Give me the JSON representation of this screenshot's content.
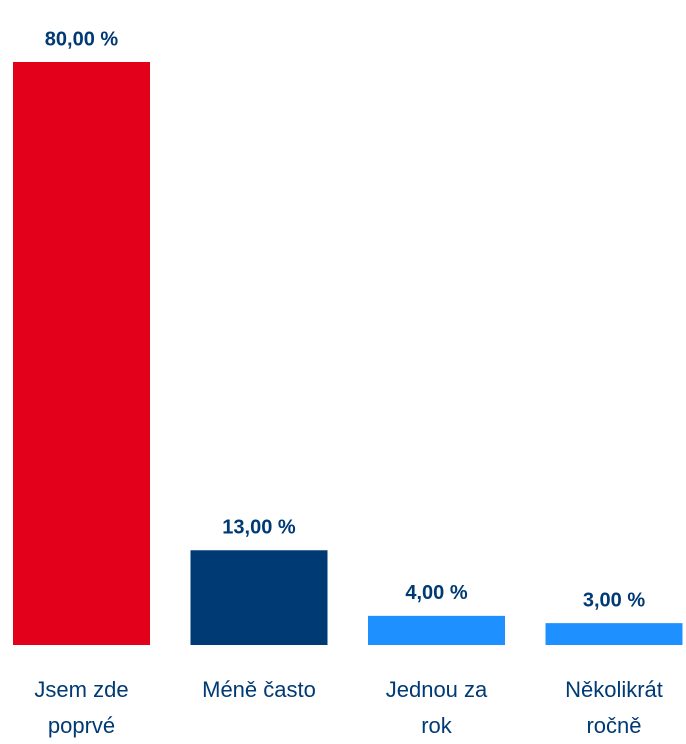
{
  "chart_data": {
    "type": "bar",
    "categories": [
      "Jsem zde poprvé",
      "Méně často",
      "Jednou za rok",
      "Několikrát ročně"
    ],
    "values": [
      80,
      13,
      4,
      3
    ],
    "value_labels": [
      "80,00 %",
      "13,00 %",
      "4,00 %",
      "3,00 %"
    ],
    "colors": [
      "#e2001a",
      "#003a75",
      "#1e90ff",
      "#1e90ff"
    ]
  }
}
